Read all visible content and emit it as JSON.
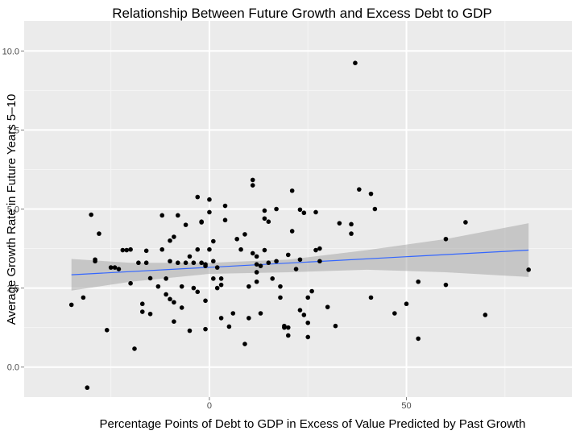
{
  "chart_data": {
    "type": "scatter",
    "title": "Relationship Between Future Growth and Excess Debt to GDP",
    "xlabel": "Percentage Points of Debt to GDP in Excess of Value Predicted by Past Growth",
    "ylabel": "Average Growth Rate in Future Years 5–10",
    "xlim": [
      -47,
      92
    ],
    "ylim": [
      -0.95,
      10.95
    ],
    "x_ticks": [
      0,
      50
    ],
    "x_tick_labels": [
      "0",
      "50"
    ],
    "y_ticks": [
      0,
      2.5,
      5,
      7.5,
      10
    ],
    "y_tick_labels": [
      "0.0",
      "2.5",
      "5.0",
      "7.5",
      "10.0"
    ],
    "grid": true,
    "legend": "none",
    "colors": {
      "panel": "#ebebeb",
      "grid_major": "#ffffff",
      "grid_minor": "#f5f5f5",
      "point": "#000000",
      "line": "#3366ff",
      "band": "#999999"
    },
    "points": [
      [
        -35,
        1.97
      ],
      [
        -32,
        2.2
      ],
      [
        -31,
        -0.65
      ],
      [
        -30,
        4.82
      ],
      [
        -29,
        3.4
      ],
      [
        -29,
        3.35
      ],
      [
        -28,
        4.22
      ],
      [
        -26,
        1.17
      ],
      [
        -25,
        3.15
      ],
      [
        -24,
        3.15
      ],
      [
        -23,
        3.1
      ],
      [
        -22,
        3.7
      ],
      [
        -21,
        3.7
      ],
      [
        -20,
        3.72
      ],
      [
        -20,
        2.65
      ],
      [
        -19,
        0.58
      ],
      [
        -17,
        2.0
      ],
      [
        -18,
        3.3
      ],
      [
        -17,
        1.75
      ],
      [
        -16,
        3.68
      ],
      [
        -16,
        3.3
      ],
      [
        -15,
        2.81
      ],
      [
        -15,
        1.68
      ],
      [
        -13,
        2.55
      ],
      [
        -12,
        4.8
      ],
      [
        -12,
        3.72
      ],
      [
        -11,
        2.8
      ],
      [
        -11,
        2.3
      ],
      [
        -10,
        2.15
      ],
      [
        -10,
        4.0
      ],
      [
        -10,
        3.35
      ],
      [
        -9,
        4.12
      ],
      [
        -9,
        2.05
      ],
      [
        -9,
        1.44
      ],
      [
        -8,
        3.3
      ],
      [
        -8,
        4.8
      ],
      [
        -7,
        2.55
      ],
      [
        -7,
        1.88
      ],
      [
        -6,
        3.3
      ],
      [
        -6,
        4.5
      ],
      [
        -5,
        1.15
      ],
      [
        -5,
        3.5
      ],
      [
        -4,
        3.3
      ],
      [
        -4,
        2.5
      ],
      [
        -3,
        5.38
      ],
      [
        -3,
        3.72
      ],
      [
        -3,
        2.38
      ],
      [
        -2,
        4.6
      ],
      [
        -2,
        4.58
      ],
      [
        -2,
        3.3
      ],
      [
        -1,
        3.25
      ],
      [
        -1,
        3.2
      ],
      [
        -1,
        2.1
      ],
      [
        -1,
        1.2
      ],
      [
        0,
        5.3
      ],
      [
        0,
        3.72
      ],
      [
        0,
        4.9
      ],
      [
        1,
        3.35
      ],
      [
        1,
        3.98
      ],
      [
        1,
        2.8
      ],
      [
        2,
        3.15
      ],
      [
        2,
        2.5
      ],
      [
        3,
        2.6
      ],
      [
        3,
        1.55
      ],
      [
        3,
        2.8
      ],
      [
        4,
        5.1
      ],
      [
        4,
        4.65
      ],
      [
        5,
        1.28
      ],
      [
        6,
        1.7
      ],
      [
        7,
        4.05
      ],
      [
        8,
        3.72
      ],
      [
        9,
        0.73
      ],
      [
        9,
        4.2
      ],
      [
        10,
        2.55
      ],
      [
        10,
        1.55
      ],
      [
        11,
        5.92
      ],
      [
        11,
        5.75
      ],
      [
        11,
        3.6
      ],
      [
        12,
        3.5
      ],
      [
        12,
        3.25
      ],
      [
        12,
        3.0
      ],
      [
        12,
        2.7
      ],
      [
        13,
        1.7
      ],
      [
        13,
        3.2
      ],
      [
        14,
        3.7
      ],
      [
        14,
        4.95
      ],
      [
        14,
        4.7
      ],
      [
        15,
        4.6
      ],
      [
        15,
        3.3
      ],
      [
        16,
        2.8
      ],
      [
        17,
        5.0
      ],
      [
        17,
        3.35
      ],
      [
        18,
        2.55
      ],
      [
        18,
        2.2
      ],
      [
        19,
        1.3
      ],
      [
        19,
        1.25
      ],
      [
        20,
        1.0
      ],
      [
        20,
        3.55
      ],
      [
        20,
        1.25
      ],
      [
        21,
        5.58
      ],
      [
        21,
        4.3
      ],
      [
        22,
        3.1
      ],
      [
        23,
        3.4
      ],
      [
        23,
        4.98
      ],
      [
        23,
        1.8
      ],
      [
        24,
        4.88
      ],
      [
        24,
        1.65
      ],
      [
        25,
        0.95
      ],
      [
        25,
        1.4
      ],
      [
        25,
        2.2
      ],
      [
        26,
        2.4
      ],
      [
        27,
        3.7
      ],
      [
        27,
        4.9
      ],
      [
        28,
        3.75
      ],
      [
        28,
        3.35
      ],
      [
        30,
        1.9
      ],
      [
        32,
        1.3
      ],
      [
        33,
        4.55
      ],
      [
        36,
        4.22
      ],
      [
        36,
        4.52
      ],
      [
        37,
        9.62
      ],
      [
        38,
        5.62
      ],
      [
        41,
        2.2
      ],
      [
        41,
        5.48
      ],
      [
        42,
        5.0
      ],
      [
        47,
        1.7
      ],
      [
        50,
        2.0
      ],
      [
        53,
        2.7
      ],
      [
        53,
        0.9
      ],
      [
        60,
        2.6
      ],
      [
        60,
        4.05
      ],
      [
        65,
        4.58
      ],
      [
        70,
        1.65
      ],
      [
        81,
        3.08
      ]
    ],
    "fit_line": {
      "x": [
        -35,
        81
      ],
      "y": [
        2.92,
        3.7
      ]
    },
    "confidence_band": {
      "x": [
        -35,
        -20,
        0,
        20,
        40,
        60,
        81
      ],
      "lower": [
        2.42,
        2.7,
        2.95,
        3.0,
        3.08,
        3.0,
        2.85
      ],
      "upper": [
        3.42,
        3.3,
        3.3,
        3.4,
        3.7,
        4.05,
        4.55
      ]
    }
  }
}
